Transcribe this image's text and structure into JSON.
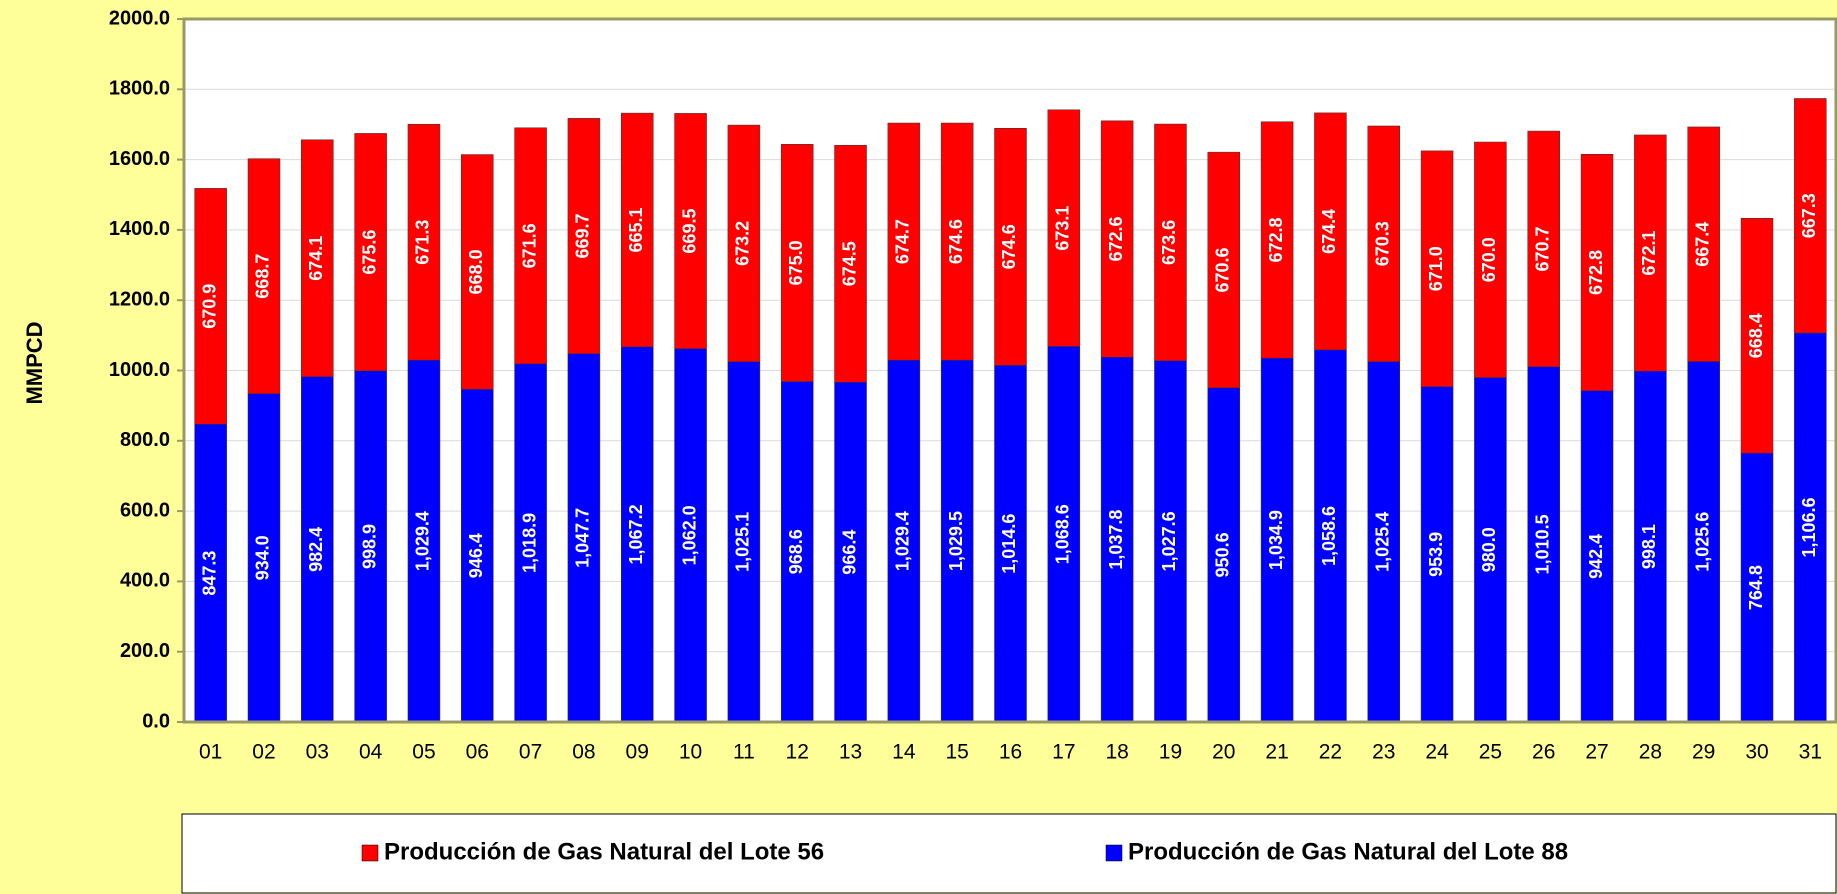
{
  "chart_data": {
    "type": "bar",
    "stacked": true,
    "y_label": "MMPCD",
    "categories": [
      "01",
      "02",
      "03",
      "04",
      "05",
      "06",
      "07",
      "08",
      "09",
      "10",
      "11",
      "12",
      "13",
      "14",
      "15",
      "16",
      "17",
      "18",
      "19",
      "20",
      "21",
      "22",
      "23",
      "24",
      "25",
      "26",
      "27",
      "28",
      "29",
      "30",
      "31"
    ],
    "series": [
      {
        "name": "Producción de Gas Natural del Lote 56",
        "color": "#ff0000",
        "values": [
          670.9,
          668.7,
          674.1,
          675.6,
          671.3,
          668.0,
          671.6,
          669.7,
          665.1,
          669.5,
          673.2,
          675.0,
          674.5,
          674.7,
          674.6,
          674.6,
          673.1,
          672.6,
          673.6,
          670.6,
          672.8,
          674.4,
          670.3,
          671.0,
          670.0,
          670.7,
          672.8,
          672.1,
          667.4,
          668.4,
          667.3
        ],
        "value_labels": [
          "670.9",
          "668.7",
          "674.1",
          "675.6",
          "671.3",
          "668.0",
          "671.6",
          "669.7",
          "665.1",
          "669.5",
          "673.2",
          "675.0",
          "674.5",
          "674.7",
          "674.6",
          "674.6",
          "673.1",
          "672.6",
          "673.6",
          "670.6",
          "672.8",
          "674.4",
          "670.3",
          "671.0",
          "670.0",
          "670.7",
          "672.8",
          "672.1",
          "667.4",
          "668.4",
          "667.3"
        ]
      },
      {
        "name": "Producción de Gas Natural del Lote 88",
        "color": "#0000ff",
        "values": [
          847.3,
          934.0,
          982.4,
          998.9,
          1029.4,
          946.4,
          1018.9,
          1047.7,
          1067.2,
          1062.0,
          1025.1,
          968.6,
          966.4,
          1029.4,
          1029.5,
          1014.6,
          1068.6,
          1037.8,
          1027.6,
          950.6,
          1034.9,
          1058.6,
          1025.4,
          953.9,
          980.0,
          1010.5,
          942.4,
          998.1,
          1025.6,
          764.8,
          1106.6
        ],
        "value_labels": [
          "847.3",
          "934.0",
          "982.4",
          "998.9",
          "1,029.4",
          "946.4",
          "1,018.9",
          "1,047.7",
          "1,067.2",
          "1,062.0",
          "1,025.1",
          "968.6",
          "966.4",
          "1,029.4",
          "1,029.5",
          "1,014.6",
          "1,068.6",
          "1,037.8",
          "1,027.6",
          "950.6",
          "1,034.9",
          "1,058.6",
          "1,025.4",
          "953.9",
          "980.0",
          "1,010.5",
          "942.4",
          "998.1",
          "1,025.6",
          "764.8",
          "1,106.6"
        ]
      }
    ],
    "ylim": [
      0,
      2000
    ],
    "yticks": [
      {
        "value": 0,
        "label": "0.0"
      },
      {
        "value": 200,
        "label": "200.0"
      },
      {
        "value": 400,
        "label": "400.0"
      },
      {
        "value": 600,
        "label": "600.0"
      },
      {
        "value": 800,
        "label": "800.0"
      },
      {
        "value": 1000,
        "label": "1000.0"
      },
      {
        "value": 1200,
        "label": "1200.0"
      },
      {
        "value": 1400,
        "label": "1400.0"
      },
      {
        "value": 1600,
        "label": "1600.0"
      },
      {
        "value": 1800,
        "label": "1800.0"
      },
      {
        "value": 2000,
        "label": "2000.0"
      }
    ],
    "grid": true
  }
}
